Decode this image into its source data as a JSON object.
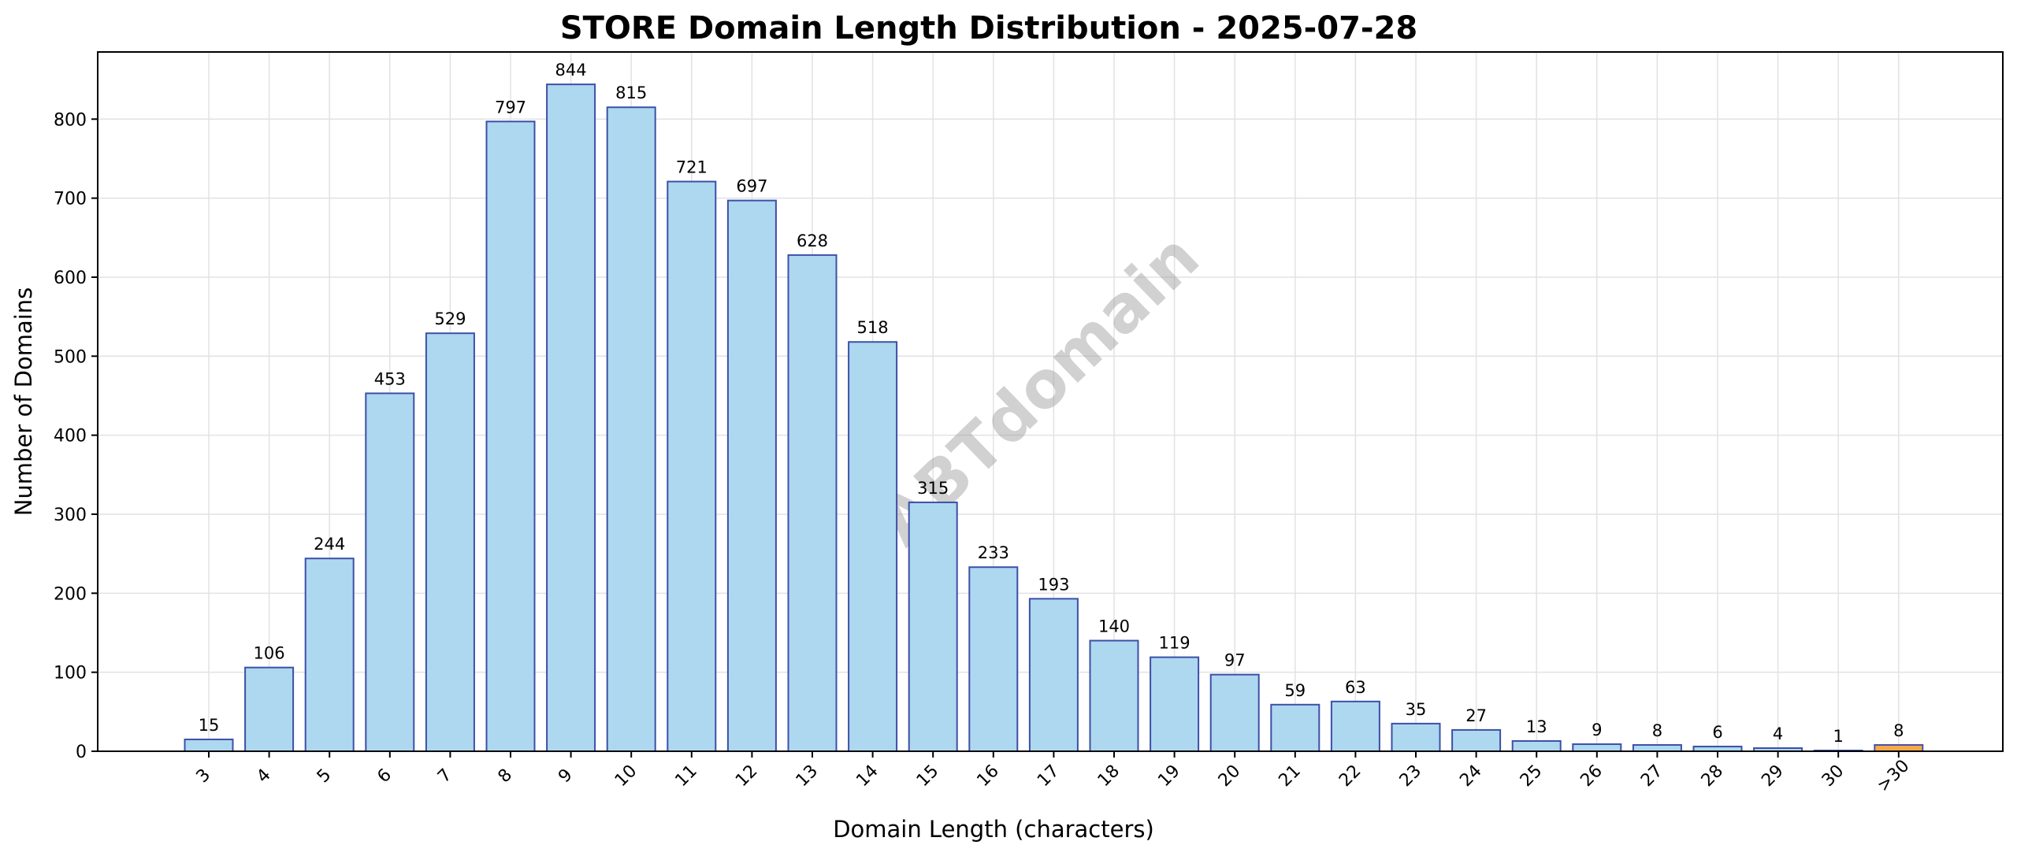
{
  "chart_data": {
    "type": "bar",
    "title": "STORE Domain Length Distribution - 2025-07-28",
    "xlabel": "Domain Length (characters)",
    "ylabel": "Number of Domains",
    "categories": [
      "3",
      "4",
      "5",
      "6",
      "7",
      "8",
      "9",
      "10",
      "11",
      "12",
      "13",
      "14",
      "15",
      "16",
      "17",
      "18",
      "19",
      "20",
      "21",
      "22",
      "23",
      "24",
      "25",
      "26",
      "27",
      "28",
      "29",
      "30",
      ">30"
    ],
    "values": [
      15,
      106,
      244,
      453,
      529,
      797,
      844,
      815,
      721,
      697,
      628,
      518,
      315,
      233,
      193,
      140,
      119,
      97,
      59,
      63,
      35,
      27,
      13,
      9,
      8,
      6,
      4,
      1,
      8
    ],
    "ylim": [
      0,
      885
    ],
    "yticks": [
      0,
      100,
      200,
      300,
      400,
      500,
      600,
      700,
      800
    ],
    "grid": true,
    "data_labels": true,
    "colors": {
      "bar_fill": "#add8ef",
      "bar_edge": "#3d4fa8",
      "highlight_fill": "#f4a94a",
      "highlight_edge": "#4a4fa8",
      "grid": "#e2e2e2"
    },
    "highlight_categories": [
      ">30"
    ],
    "watermark": "ABTdomain"
  }
}
